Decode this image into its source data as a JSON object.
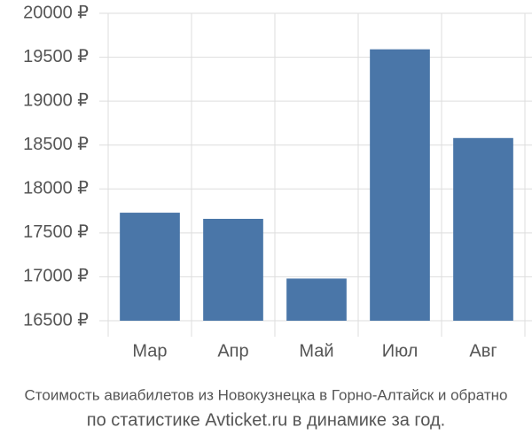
{
  "chart_data": {
    "type": "bar",
    "title": "Стоимость авиабилетов из Новокузнецка в Горно-Алтайск и обратно",
    "subtitle": "по статистике Avticket.ru в динамике за год.",
    "categories": [
      "Мар",
      "Апр",
      "Май",
      "Июл",
      "Авг"
    ],
    "values": [
      17730,
      17660,
      16980,
      19590,
      18580
    ],
    "color": "#4a76a8",
    "ylim": [
      16500,
      20000
    ],
    "yticks": [
      {
        "value": 16500,
        "label": "16500 ₽"
      },
      {
        "value": 17000,
        "label": "17000 ₽"
      },
      {
        "value": 17500,
        "label": "17500 ₽"
      },
      {
        "value": 18000,
        "label": "18000 ₽"
      },
      {
        "value": 18500,
        "label": "18500 ₽"
      },
      {
        "value": 19000,
        "label": "19000 ₽"
      },
      {
        "value": 19500,
        "label": "19500 ₽"
      },
      {
        "value": 20000,
        "label": "20000 ₽"
      }
    ],
    "grid": true
  }
}
